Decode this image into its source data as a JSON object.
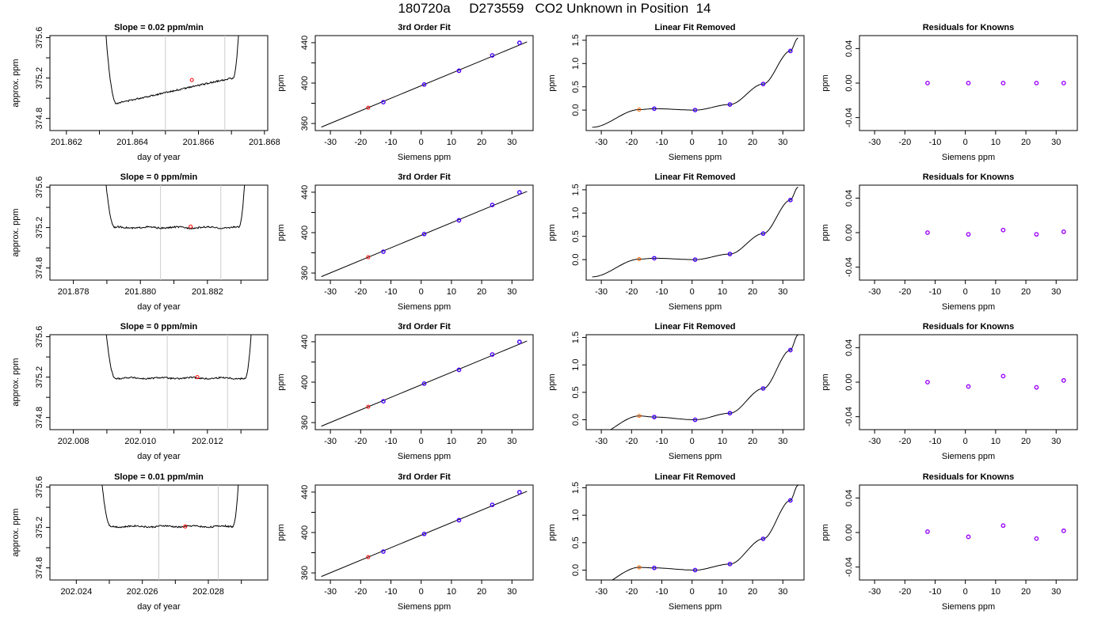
{
  "page_title": "180720a     D273559   CO2 Unknown in Position  14",
  "colors": {
    "trace": "#000000",
    "fit_line": "#000000",
    "vline": "#cccccc",
    "point_red": "#ff0000",
    "point_orange": "#ff6600",
    "point_blue": "#0000ff",
    "point_purple": "#9900ff"
  },
  "chart_data": [
    {
      "type": "line",
      "title": "Slope =  0.02  ppm/min",
      "xlabel": "day of year",
      "ylabel": "approx. ppm",
      "xlim": [
        201.8615,
        201.8681
      ],
      "ylim": [
        374.68,
        375.62
      ],
      "xticks": [
        "201.862",
        "201.864",
        "201.866",
        "201.868"
      ],
      "xtick_values": [
        201.862,
        201.864,
        201.866,
        201.868
      ],
      "yticks": [
        "374.8",
        "375.2",
        "375.6"
      ],
      "ytick_values": [
        374.8,
        375.2,
        375.6
      ],
      "vlines": [
        201.865,
        201.8668
      ],
      "marker": [
        201.8658,
        375.18
      ],
      "baseline": 375.2,
      "window": [
        201.8631,
        201.8673
      ]
    },
    {
      "type": "scatter",
      "title": "3rd Order Fit",
      "xlabel": "Siemens ppm",
      "ylabel": "ppm",
      "xlim": [
        -35,
        37
      ],
      "ylim": [
        353,
        447
      ],
      "xticks": [
        "-30",
        "-20",
        "-10",
        "0",
        "10",
        "20",
        "30"
      ],
      "xtick_values": [
        -30,
        -20,
        -10,
        0,
        10,
        20,
        30
      ],
      "yticks": [
        "360",
        "400",
        "440"
      ],
      "ytick_values": [
        360,
        400,
        440
      ],
      "points": [
        [
          -17.5,
          375.6,
          "red"
        ],
        [
          -12.5,
          381.1,
          "blue"
        ],
        [
          1,
          398.6,
          "blue"
        ],
        [
          12.5,
          412.2,
          "blue"
        ],
        [
          23.5,
          427.4,
          "blue"
        ],
        [
          32.5,
          439.9,
          "blue"
        ]
      ]
    },
    {
      "type": "scatter",
      "title": "Linear Fit Removed",
      "xlabel": "Siemens ppm",
      "ylabel": "ppm",
      "xlim": [
        -35,
        37
      ],
      "ylim": [
        -0.44,
        1.6
      ],
      "xticks": [
        "-30",
        "-20",
        "-10",
        "0",
        "10",
        "20",
        "30"
      ],
      "xtick_values": [
        -30,
        -20,
        -10,
        0,
        10,
        20,
        30
      ],
      "yticks": [
        "0.0",
        "0.5",
        "1.0",
        "1.5"
      ],
      "ytick_values": [
        0,
        0.5,
        1,
        1.5
      ],
      "points": [
        [
          -17.5,
          0.01,
          "orange"
        ],
        [
          -12.5,
          0.03,
          "blue"
        ],
        [
          1,
          0,
          "blue"
        ],
        [
          12.5,
          0.12,
          "blue"
        ],
        [
          23.5,
          0.56,
          "blue"
        ],
        [
          32.5,
          1.27,
          "blue"
        ]
      ]
    },
    {
      "type": "scatter",
      "title": "Residuals for Knowns",
      "xlabel": "Siemens ppm",
      "ylabel": "ppm",
      "xlim": [
        -35,
        37
      ],
      "ylim": [
        -0.055,
        0.055
      ],
      "xticks": [
        "-30",
        "-20",
        "-10",
        "0",
        "10",
        "20",
        "30"
      ],
      "xtick_values": [
        -30,
        -20,
        -10,
        0,
        10,
        20,
        30
      ],
      "yticks": [
        "-0.04",
        "0.00",
        "0.04"
      ],
      "ytick_values": [
        -0.04,
        0,
        0.04
      ],
      "points": [
        [
          -12.5,
          0,
          "purple"
        ],
        [
          1,
          0,
          "purple"
        ],
        [
          12.5,
          0,
          "purple"
        ],
        [
          23.5,
          0,
          "purple"
        ],
        [
          32.5,
          0,
          "purple"
        ]
      ]
    },
    {
      "type": "line",
      "title": "Slope =  0  ppm/min",
      "xlabel": "day of year",
      "ylabel": "approx. ppm",
      "xlim": [
        201.8773,
        201.8838
      ],
      "ylim": [
        374.68,
        375.62
      ],
      "xticks": [
        "201.878",
        "201.880",
        "201.882"
      ],
      "xtick_values": [
        201.878,
        201.88,
        201.882
      ],
      "yticks": [
        "374.8",
        "375.2",
        "375.6"
      ],
      "ytick_values": [
        374.8,
        375.2,
        375.6
      ],
      "vlines": [
        201.8806,
        201.8824
      ],
      "marker": [
        201.8815,
        375.21
      ],
      "baseline": 375.2,
      "window": [
        201.8788,
        201.8832
      ]
    },
    {
      "type": "scatter",
      "title": "3rd Order Fit",
      "xlabel": "Siemens ppm",
      "ylabel": "ppm",
      "xlim": [
        -35,
        37
      ],
      "ylim": [
        353,
        447
      ],
      "xticks": [
        "-30",
        "-20",
        "-10",
        "0",
        "10",
        "20",
        "30"
      ],
      "xtick_values": [
        -30,
        -20,
        -10,
        0,
        10,
        20,
        30
      ],
      "yticks": [
        "360",
        "400",
        "440"
      ],
      "ytick_values": [
        360,
        400,
        440
      ],
      "points": [
        [
          -17.5,
          375.6,
          "red"
        ],
        [
          -12.5,
          381.1,
          "blue"
        ],
        [
          1,
          398.6,
          "blue"
        ],
        [
          12.5,
          412.2,
          "blue"
        ],
        [
          23.5,
          427.4,
          "blue"
        ],
        [
          32.5,
          439.9,
          "blue"
        ]
      ]
    },
    {
      "type": "scatter",
      "title": "Linear Fit Removed",
      "xlabel": "Siemens ppm",
      "ylabel": "ppm",
      "xlim": [
        -35,
        37
      ],
      "ylim": [
        -0.44,
        1.6
      ],
      "xticks": [
        "-30",
        "-20",
        "-10",
        "0",
        "10",
        "20",
        "30"
      ],
      "xtick_values": [
        -30,
        -20,
        -10,
        0,
        10,
        20,
        30
      ],
      "yticks": [
        "0.0",
        "0.5",
        "1.0",
        "1.5"
      ],
      "ytick_values": [
        0,
        0.5,
        1,
        1.5
      ],
      "points": [
        [
          -17.5,
          0.01,
          "orange"
        ],
        [
          -12.5,
          0.03,
          "blue"
        ],
        [
          1,
          0,
          "blue"
        ],
        [
          12.5,
          0.12,
          "blue"
        ],
        [
          23.5,
          0.56,
          "blue"
        ],
        [
          32.5,
          1.28,
          "blue"
        ]
      ]
    },
    {
      "type": "scatter",
      "title": "Residuals for Knowns",
      "xlabel": "Siemens ppm",
      "ylabel": "ppm",
      "xlim": [
        -35,
        37
      ],
      "ylim": [
        -0.055,
        0.055
      ],
      "xticks": [
        "-30",
        "-20",
        "-10",
        "0",
        "10",
        "20",
        "30"
      ],
      "xtick_values": [
        -30,
        -20,
        -10,
        0,
        10,
        20,
        30
      ],
      "yticks": [
        "-0.04",
        "0.00",
        "0.04"
      ],
      "ytick_values": [
        -0.04,
        0,
        0.04
      ],
      "points": [
        [
          -12.5,
          0,
          "purple"
        ],
        [
          1,
          -0.002,
          "purple"
        ],
        [
          12.5,
          0.003,
          "purple"
        ],
        [
          23.5,
          -0.002,
          "purple"
        ],
        [
          32.5,
          0.001,
          "purple"
        ]
      ]
    },
    {
      "type": "line",
      "title": "Slope =  0  ppm/min",
      "xlabel": "day of year",
      "ylabel": "approx. ppm",
      "xlim": [
        202.0073,
        202.0138
      ],
      "ylim": [
        374.68,
        375.62
      ],
      "xticks": [
        "202.008",
        "202.010",
        "202.012"
      ],
      "xtick_values": [
        202.008,
        202.01,
        202.012
      ],
      "yticks": [
        "374.8",
        "375.2",
        "375.6"
      ],
      "ytick_values": [
        374.8,
        375.2,
        375.6
      ],
      "vlines": [
        202.0108,
        202.0126
      ],
      "marker": [
        202.0117,
        375.2
      ],
      "baseline": 375.19,
      "window": [
        202.0088,
        202.0134
      ]
    },
    {
      "type": "scatter",
      "title": "3rd Order Fit",
      "xlabel": "Siemens ppm",
      "ylabel": "ppm",
      "xlim": [
        -35,
        37
      ],
      "ylim": [
        353,
        447
      ],
      "xticks": [
        "-30",
        "-20",
        "-10",
        "0",
        "10",
        "20",
        "30"
      ],
      "xtick_values": [
        -30,
        -20,
        -10,
        0,
        10,
        20,
        30
      ],
      "yticks": [
        "360",
        "400",
        "440"
      ],
      "ytick_values": [
        360,
        400,
        440
      ],
      "points": [
        [
          -17.5,
          375.6,
          "red"
        ],
        [
          -12.5,
          381.1,
          "blue"
        ],
        [
          1,
          398.6,
          "blue"
        ],
        [
          12.5,
          412.2,
          "blue"
        ],
        [
          23.5,
          427.4,
          "blue"
        ],
        [
          32.5,
          439.9,
          "blue"
        ]
      ]
    },
    {
      "type": "scatter",
      "title": "Linear Fit Removed",
      "xlabel": "Siemens ppm",
      "ylabel": "ppm",
      "xlim": [
        -35,
        37
      ],
      "ylim": [
        -0.18,
        1.55
      ],
      "xticks": [
        "-30",
        "-20",
        "-10",
        "0",
        "10",
        "20",
        "30"
      ],
      "xtick_values": [
        -30,
        -20,
        -10,
        0,
        10,
        20,
        30
      ],
      "yticks": [
        "0.0",
        "0.5",
        "1.0",
        "1.5"
      ],
      "ytick_values": [
        0,
        0.5,
        1,
        1.5
      ],
      "points": [
        [
          -17.5,
          0.07,
          "orange"
        ],
        [
          -12.5,
          0.05,
          "blue"
        ],
        [
          1,
          0,
          "blue"
        ],
        [
          12.5,
          0.12,
          "blue"
        ],
        [
          23.5,
          0.57,
          "blue"
        ],
        [
          32.5,
          1.27,
          "blue"
        ]
      ]
    },
    {
      "type": "scatter",
      "title": "Residuals for Knowns",
      "xlabel": "Siemens ppm",
      "ylabel": "ppm",
      "xlim": [
        -35,
        37
      ],
      "ylim": [
        -0.055,
        0.055
      ],
      "xticks": [
        "-30",
        "-20",
        "-10",
        "0",
        "10",
        "20",
        "30"
      ],
      "xtick_values": [
        -30,
        -20,
        -10,
        0,
        10,
        20,
        30
      ],
      "yticks": [
        "-0.04",
        "0.00",
        "0.04"
      ],
      "ytick_values": [
        -0.04,
        0,
        0.04
      ],
      "points": [
        [
          -12.5,
          0,
          "purple"
        ],
        [
          1,
          -0.005,
          "purple"
        ],
        [
          12.5,
          0.007,
          "purple"
        ],
        [
          23.5,
          -0.006,
          "purple"
        ],
        [
          32.5,
          0.002,
          "purple"
        ]
      ]
    },
    {
      "type": "line",
      "title": "Slope =  0.01  ppm/min",
      "xlabel": "day of year",
      "ylabel": "approx. ppm",
      "xlim": [
        202.0232,
        202.0298
      ],
      "ylim": [
        374.68,
        375.62
      ],
      "xticks": [
        "202.024",
        "202.026",
        "202.028"
      ],
      "xtick_values": [
        202.024,
        202.026,
        202.028
      ],
      "yticks": [
        "374.8",
        "375.2",
        "375.6"
      ],
      "ytick_values": [
        374.8,
        375.2,
        375.6
      ],
      "vlines": [
        202.0265,
        202.0283
      ],
      "marker": [
        202.0273,
        375.21
      ],
      "baseline": 375.21,
      "window": [
        202.0246,
        202.029
      ]
    },
    {
      "type": "scatter",
      "title": "3rd Order Fit",
      "xlabel": "Siemens ppm",
      "ylabel": "ppm",
      "xlim": [
        -35,
        37
      ],
      "ylim": [
        353,
        447
      ],
      "xticks": [
        "-30",
        "-20",
        "-10",
        "0",
        "10",
        "20",
        "30"
      ],
      "xtick_values": [
        -30,
        -20,
        -10,
        0,
        10,
        20,
        30
      ],
      "yticks": [
        "360",
        "400",
        "440"
      ],
      "ytick_values": [
        360,
        400,
        440
      ],
      "points": [
        [
          -17.5,
          375.6,
          "red"
        ],
        [
          -12.5,
          381.1,
          "blue"
        ],
        [
          1,
          398.6,
          "blue"
        ],
        [
          12.5,
          412.2,
          "blue"
        ],
        [
          23.5,
          427.4,
          "blue"
        ],
        [
          32.5,
          439.9,
          "blue"
        ]
      ]
    },
    {
      "type": "scatter",
      "title": "Linear Fit Removed",
      "xlabel": "Siemens ppm",
      "ylabel": "ppm",
      "xlim": [
        -35,
        37
      ],
      "ylim": [
        -0.18,
        1.55
      ],
      "xticks": [
        "-30",
        "-20",
        "-10",
        "0",
        "10",
        "20",
        "30"
      ],
      "xtick_values": [
        -30,
        -20,
        -10,
        0,
        10,
        20,
        30
      ],
      "yticks": [
        "0.0",
        "0.5",
        "1.0",
        "1.5"
      ],
      "ytick_values": [
        0,
        0.5,
        1,
        1.5
      ],
      "points": [
        [
          -17.5,
          0.05,
          "orange"
        ],
        [
          -12.5,
          0.04,
          "blue"
        ],
        [
          1,
          0,
          "blue"
        ],
        [
          12.5,
          0.11,
          "blue"
        ],
        [
          23.5,
          0.57,
          "blue"
        ],
        [
          32.5,
          1.27,
          "blue"
        ]
      ]
    },
    {
      "type": "scatter",
      "title": "Residuals for Knowns",
      "xlabel": "Siemens ppm",
      "ylabel": "ppm",
      "xlim": [
        -35,
        37
      ],
      "ylim": [
        -0.055,
        0.055
      ],
      "xticks": [
        "-30",
        "-20",
        "-10",
        "0",
        "10",
        "20",
        "30"
      ],
      "xtick_values": [
        -30,
        -20,
        -10,
        0,
        10,
        20,
        30
      ],
      "yticks": [
        "-0.04",
        "0.00",
        "0.04"
      ],
      "ytick_values": [
        -0.04,
        0,
        0.04
      ],
      "points": [
        [
          -12.5,
          0.001,
          "purple"
        ],
        [
          1,
          -0.005,
          "purple"
        ],
        [
          12.5,
          0.008,
          "purple"
        ],
        [
          23.5,
          -0.007,
          "purple"
        ],
        [
          32.5,
          0.002,
          "purple"
        ]
      ]
    }
  ]
}
